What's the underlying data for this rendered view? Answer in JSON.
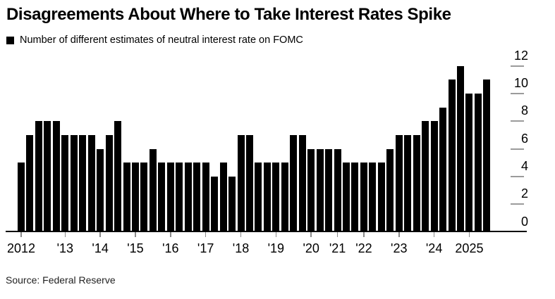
{
  "chart_data": {
    "type": "bar",
    "title": "Disagreements About Where to Take Interest Rates Spike",
    "legend_label": "Number of different estimates of neutral interest rate on FOMC",
    "source": "Source: Federal Reserve",
    "bar_color": "#000000",
    "axis": {
      "y_side": "right",
      "ylim": [
        0,
        12
      ],
      "y_ticks": [
        0,
        2,
        4,
        6,
        8,
        10,
        12
      ],
      "grid": false,
      "x_tick_alignment": "first bar of each year"
    },
    "groups": [
      {
        "year": "2012",
        "values": [
          5,
          7,
          8,
          8,
          8
        ]
      },
      {
        "year": "'13",
        "values": [
          7,
          7,
          7,
          7
        ]
      },
      {
        "year": "'14",
        "values": [
          6,
          7,
          8,
          5
        ]
      },
      {
        "year": "'15",
        "values": [
          5,
          5,
          6,
          5
        ]
      },
      {
        "year": "'16",
        "values": [
          5,
          5,
          5,
          5
        ]
      },
      {
        "year": "'17",
        "values": [
          5,
          4,
          5,
          4
        ]
      },
      {
        "year": "'18",
        "values": [
          7,
          7,
          5,
          5
        ]
      },
      {
        "year": "'19",
        "values": [
          5,
          5,
          7,
          7
        ]
      },
      {
        "year": "'20",
        "values": [
          6,
          6,
          6
        ]
      },
      {
        "year": "'21",
        "values": [
          6,
          5,
          5
        ]
      },
      {
        "year": "'22",
        "values": [
          5,
          5,
          5,
          6
        ]
      },
      {
        "year": "'23",
        "values": [
          7,
          7,
          7,
          8
        ]
      },
      {
        "year": "'24",
        "values": [
          8,
          9,
          11,
          12
        ]
      },
      {
        "year": "2025",
        "values": [
          10,
          10,
          11
        ]
      }
    ]
  }
}
